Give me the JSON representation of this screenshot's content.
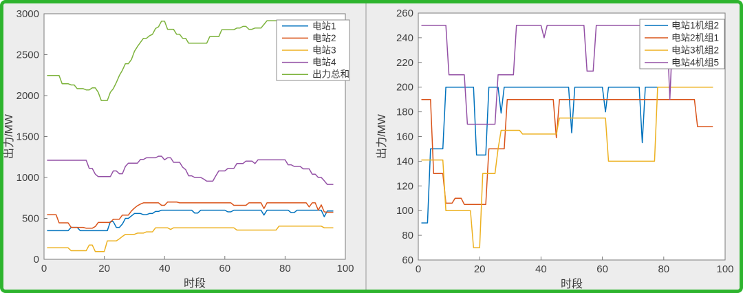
{
  "frame": {
    "border_color": "#2eb42e",
    "background_color": "#ededed",
    "divider_color": "#c2c2c2",
    "plot_background": "#ffffff",
    "axes_box_color": "#7a7a7a"
  },
  "chart_data": [
    {
      "name": "station-total-output-chart",
      "type": "line",
      "title": "",
      "xlabel": "时段",
      "ylabel": "出力/MW",
      "xlim": [
        0,
        100
      ],
      "ylim": [
        0,
        3000
      ],
      "xticks": [
        0,
        20,
        40,
        60,
        80,
        100
      ],
      "yticks": [
        0,
        500,
        1000,
        1500,
        2000,
        2500,
        3000
      ],
      "grid": false,
      "legend_position": "top-right",
      "x": {
        "start": 1,
        "step": 1,
        "count": 96
      },
      "series": [
        {
          "name": "电站1",
          "color": "#0072BD",
          "values": [
            350,
            350,
            350,
            350,
            350,
            350,
            350,
            350,
            390,
            390,
            390,
            350,
            350,
            350,
            350,
            350,
            350,
            350,
            350,
            350,
            350,
            460,
            460,
            390,
            390,
            430,
            500,
            500,
            530,
            560,
            560,
            560,
            545,
            545,
            560,
            560,
            585,
            585,
            600,
            600,
            600,
            600,
            600,
            600,
            600,
            600,
            600,
            600,
            600,
            565,
            565,
            600,
            600,
            600,
            600,
            600,
            600,
            600,
            600,
            600,
            580,
            580,
            600,
            600,
            600,
            600,
            600,
            600,
            600,
            600,
            600,
            600,
            540,
            600,
            600,
            600,
            600,
            600,
            600,
            600,
            600,
            570,
            570,
            600,
            600,
            600,
            600,
            600,
            600,
            600,
            600,
            600,
            520,
            590,
            590,
            590
          ]
        },
        {
          "name": "电站2",
          "color": "#D95319",
          "values": [
            545,
            545,
            545,
            545,
            445,
            445,
            445,
            445,
            390,
            390,
            390,
            390,
            390,
            380,
            380,
            380,
            400,
            450,
            450,
            450,
            450,
            450,
            490,
            490,
            490,
            540,
            540,
            540,
            590,
            625,
            655,
            675,
            690,
            690,
            690,
            690,
            690,
            690,
            660,
            660,
            700,
            700,
            700,
            700,
            690,
            690,
            690,
            690,
            690,
            690,
            690,
            690,
            690,
            690,
            690,
            690,
            690,
            690,
            690,
            690,
            690,
            690,
            660,
            660,
            660,
            660,
            660,
            690,
            690,
            690,
            690,
            690,
            620,
            690,
            690,
            690,
            690,
            690,
            690,
            690,
            690,
            690,
            690,
            690,
            690,
            690,
            690,
            640,
            690,
            690,
            600,
            665,
            580,
            575,
            575,
            575
          ]
        },
        {
          "name": "电站3",
          "color": "#EDB120",
          "values": [
            140,
            140,
            140,
            140,
            140,
            140,
            140,
            140,
            105,
            105,
            105,
            105,
            105,
            105,
            175,
            175,
            95,
            95,
            95,
            95,
            225,
            225,
            225,
            225,
            250,
            280,
            305,
            305,
            305,
            305,
            320,
            320,
            320,
            335,
            335,
            335,
            385,
            385,
            385,
            385,
            385,
            365,
            385,
            385,
            385,
            385,
            385,
            385,
            385,
            385,
            385,
            385,
            385,
            385,
            385,
            385,
            385,
            385,
            385,
            385,
            385,
            385,
            385,
            357,
            357,
            357,
            357,
            357,
            357,
            357,
            357,
            357,
            357,
            357,
            357,
            357,
            357,
            405,
            405,
            405,
            405,
            405,
            405,
            405,
            405,
            405,
            405,
            405,
            405,
            405,
            405,
            405,
            385,
            385,
            385,
            385
          ]
        },
        {
          "name": "电站4",
          "color": "#9350A5",
          "values": [
            1210,
            1210,
            1210,
            1210,
            1210,
            1210,
            1210,
            1210,
            1210,
            1210,
            1210,
            1210,
            1210,
            1210,
            1110,
            1110,
            1040,
            1010,
            1010,
            1010,
            1010,
            1010,
            1080,
            1080,
            1045,
            1045,
            1135,
            1175,
            1175,
            1175,
            1175,
            1220,
            1220,
            1240,
            1240,
            1240,
            1240,
            1260,
            1260,
            1215,
            1240,
            1240,
            1185,
            1185,
            1185,
            1125,
            1095,
            1020,
            1020,
            1000,
            1000,
            1000,
            980,
            955,
            955,
            955,
            1020,
            1080,
            1080,
            1080,
            1110,
            1110,
            1110,
            1170,
            1170,
            1170,
            1200,
            1200,
            1200,
            1170,
            1215,
            1215,
            1215,
            1215,
            1215,
            1215,
            1215,
            1215,
            1215,
            1215,
            1155,
            1155,
            1135,
            1135,
            1135,
            1105,
            1105,
            1105,
            1040,
            1040,
            1000,
            1000,
            960,
            915,
            915,
            915
          ]
        },
        {
          "name": "出力总和",
          "color": "#7DB33C",
          "values": [
            2245,
            2245,
            2245,
            2245,
            2245,
            2145,
            2145,
            2145,
            2130,
            2130,
            2085,
            2085,
            2085,
            2070,
            2070,
            2095,
            2095,
            2040,
            1940,
            1940,
            1940,
            2040,
            2085,
            2160,
            2245,
            2310,
            2390,
            2390,
            2440,
            2540,
            2600,
            2650,
            2700,
            2700,
            2730,
            2750,
            2820,
            2840,
            2910,
            2910,
            2810,
            2810,
            2810,
            2750,
            2750,
            2700,
            2700,
            2640,
            2640,
            2640,
            2640,
            2640,
            2640,
            2640,
            2720,
            2720,
            2720,
            2720,
            2805,
            2805,
            2805,
            2805,
            2805,
            2825,
            2825,
            2845,
            2845,
            2810,
            2810,
            2825,
            2825,
            2825,
            2870,
            2915,
            2915,
            2915,
            2915,
            2915,
            2880,
            2880,
            2880,
            2880,
            2880,
            2880,
            2880,
            2880,
            2880,
            2880,
            2880,
            2880,
            2880,
            2880,
            2880,
            2880,
            2880,
            2880
          ]
        }
      ]
    },
    {
      "name": "unit-output-chart",
      "type": "line",
      "title": "",
      "xlabel": "时段",
      "ylabel": "出力/MW",
      "xlim": [
        0,
        100
      ],
      "ylim": [
        60,
        260
      ],
      "xticks": [
        0,
        20,
        40,
        60,
        80,
        100
      ],
      "yticks": [
        60,
        80,
        100,
        120,
        140,
        160,
        180,
        200,
        220,
        240,
        260
      ],
      "grid": false,
      "legend_position": "top-right",
      "x": {
        "start": 1,
        "step": 1,
        "count": 96
      },
      "series": [
        {
          "name": "电站1机组2",
          "color": "#0072BD",
          "values": [
            90,
            90,
            90,
            150,
            150,
            150,
            150,
            150,
            200,
            200,
            200,
            200,
            200,
            200,
            200,
            200,
            200,
            200,
            145,
            145,
            145,
            145,
            200,
            200,
            200,
            200,
            179,
            200,
            200,
            200,
            200,
            200,
            200,
            200,
            200,
            200,
            200,
            200,
            200,
            200,
            200,
            200,
            200,
            200,
            200,
            200,
            200,
            200,
            200,
            163,
            200,
            200,
            200,
            200,
            200,
            200,
            200,
            200,
            200,
            200,
            180,
            200,
            200,
            200,
            200,
            200,
            200,
            200,
            200,
            200,
            200,
            200,
            155,
            200,
            200,
            200,
            200,
            200,
            200,
            200,
            200,
            200,
            200,
            200,
            200,
            200,
            200,
            200,
            200,
            200,
            200,
            200,
            200,
            200,
            200,
            200
          ]
        },
        {
          "name": "电站2机组1",
          "color": "#D95319",
          "values": [
            190,
            190,
            190,
            190,
            130,
            130,
            130,
            130,
            106,
            106,
            106,
            110,
            110,
            110,
            105,
            105,
            105,
            105,
            105,
            105,
            105,
            105,
            150,
            150,
            150,
            150,
            150,
            150,
            190,
            190,
            190,
            190,
            190,
            190,
            190,
            190,
            190,
            190,
            190,
            190,
            190,
            190,
            190,
            190,
            159,
            190,
            190,
            190,
            190,
            190,
            190,
            190,
            190,
            190,
            190,
            190,
            190,
            190,
            190,
            190,
            190,
            190,
            190,
            190,
            190,
            190,
            190,
            190,
            190,
            190,
            190,
            190,
            190,
            190,
            190,
            190,
            190,
            190,
            190,
            190,
            190,
            190,
            190,
            190,
            190,
            190,
            190,
            190,
            190,
            190,
            168,
            168,
            168,
            168,
            168,
            168
          ]
        },
        {
          "name": "电站3机组2",
          "color": "#EDB120",
          "values": [
            141,
            141,
            141,
            141,
            141,
            141,
            141,
            141,
            100,
            100,
            100,
            100,
            100,
            100,
            100,
            100,
            100,
            70,
            70,
            70,
            130,
            130,
            130,
            130,
            130,
            150,
            165,
            165,
            165,
            165,
            165,
            165,
            165,
            162,
            162,
            162,
            162,
            162,
            162,
            162,
            162,
            162,
            162,
            162,
            162,
            175,
            175,
            175,
            175,
            175,
            175,
            175,
            175,
            175,
            175,
            175,
            175,
            175,
            175,
            175,
            175,
            140,
            140,
            140,
            140,
            140,
            140,
            140,
            140,
            140,
            140,
            140,
            140,
            140,
            140,
            140,
            140,
            200,
            200,
            200,
            200,
            200,
            200,
            200,
            200,
            200,
            200,
            200,
            200,
            200,
            200,
            200,
            200,
            200,
            200,
            200
          ]
        },
        {
          "name": "电站4机组5",
          "color": "#9350A5",
          "values": [
            250,
            250,
            250,
            250,
            250,
            250,
            250,
            250,
            250,
            210,
            210,
            210,
            210,
            210,
            210,
            170,
            170,
            170,
            170,
            170,
            170,
            170,
            170,
            170,
            170,
            210,
            210,
            210,
            210,
            210,
            210,
            250,
            250,
            250,
            250,
            250,
            250,
            250,
            250,
            250,
            240,
            250,
            250,
            250,
            250,
            250,
            250,
            250,
            250,
            250,
            250,
            250,
            250,
            250,
            213,
            213,
            213,
            250,
            250,
            250,
            250,
            250,
            250,
            250,
            250,
            250,
            250,
            250,
            250,
            250,
            250,
            250,
            250,
            250,
            250,
            250,
            250,
            250,
            250,
            250,
            250,
            190,
            250,
            250,
            250,
            250,
            250,
            250,
            250,
            250,
            250,
            250,
            250,
            250,
            250,
            250
          ]
        }
      ]
    }
  ]
}
